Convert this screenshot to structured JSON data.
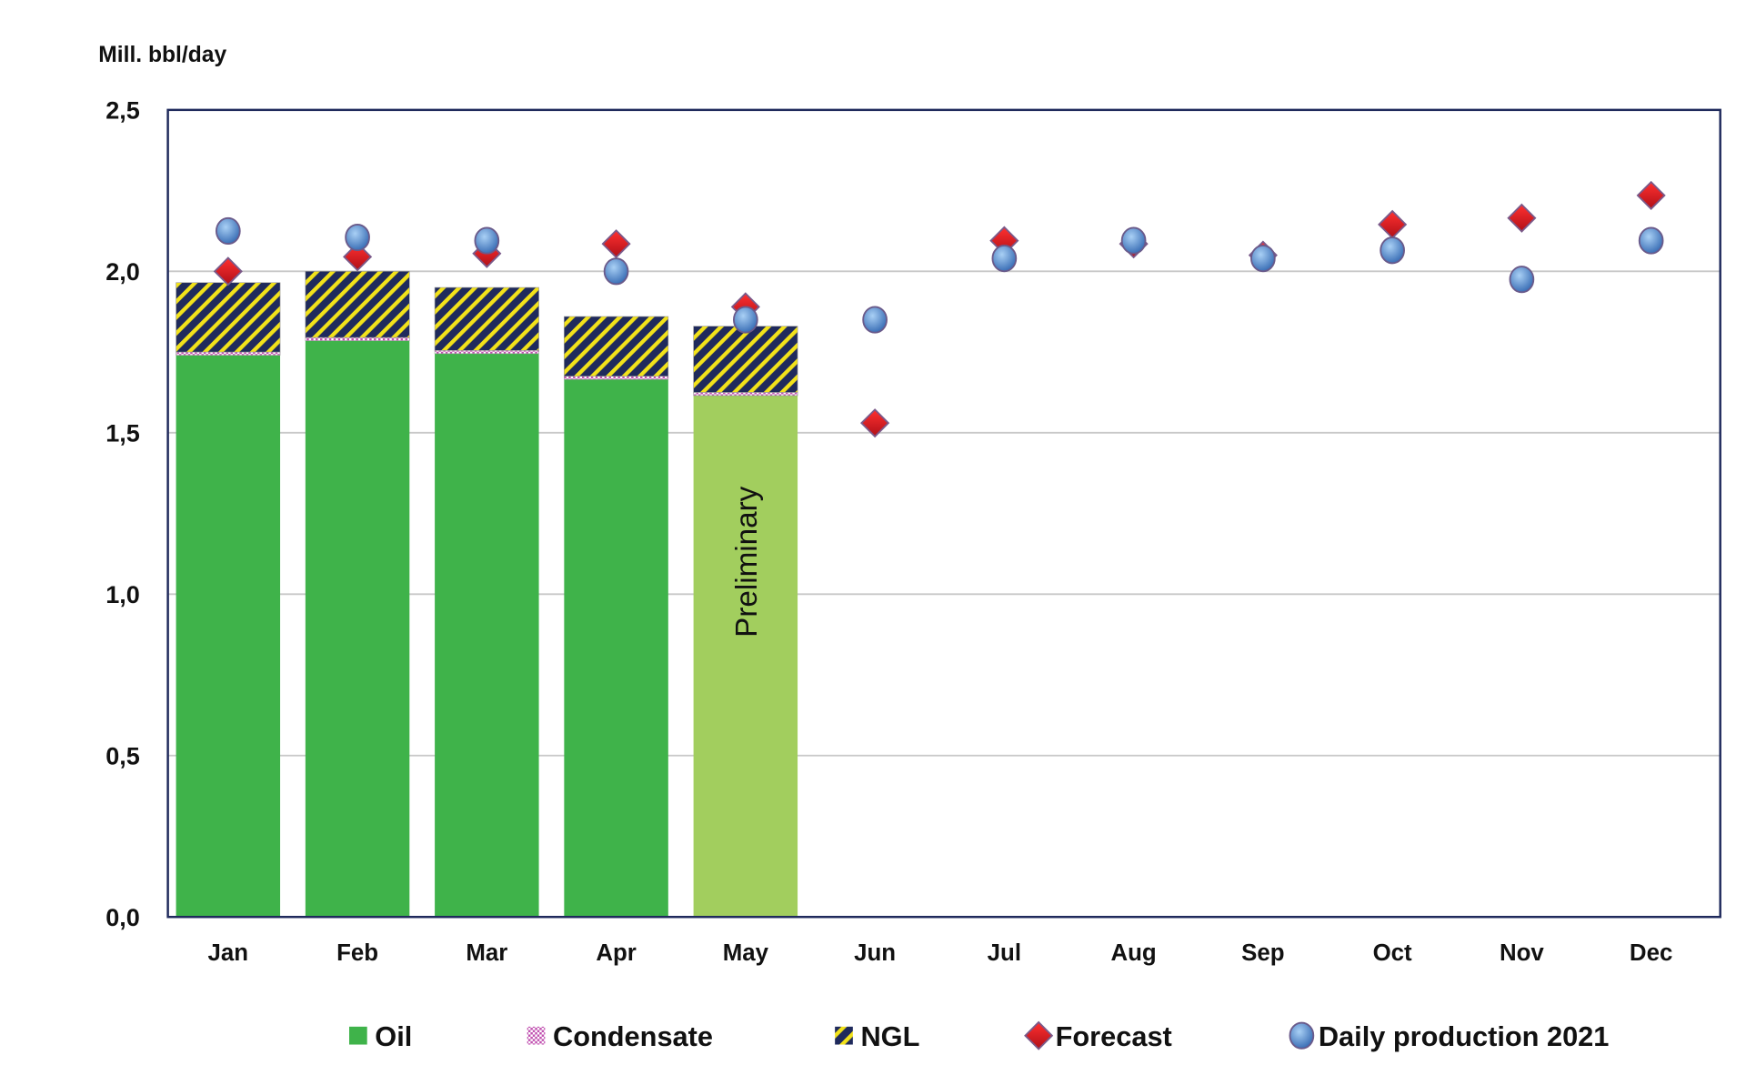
{
  "chart_data": {
    "type": "bar",
    "stacked": true,
    "ylabel": "Mill. bbl/day",
    "ylim": [
      0,
      2.5
    ],
    "yticks": [
      "0,0",
      "0,5",
      "1,0",
      "1,5",
      "2,0",
      "2,5"
    ],
    "grid": true,
    "legend_position": "bottom",
    "categories": [
      "Jan",
      "Feb",
      "Mar",
      "Apr",
      "May",
      "Jun",
      "Jul",
      "Aug",
      "Sep",
      "Oct",
      "Nov",
      "Dec"
    ],
    "series": [
      {
        "name": "Oil",
        "kind": "bar",
        "color": "#3FB34A",
        "values": [
          1.74,
          1.785,
          1.745,
          1.665,
          1.615,
          null,
          null,
          null,
          null,
          null,
          null,
          null
        ]
      },
      {
        "name": "Condensate",
        "kind": "bar",
        "color": "#C050B0",
        "values": [
          0.01,
          0.01,
          0.01,
          0.01,
          0.01,
          null,
          null,
          null,
          null,
          null,
          null,
          null
        ]
      },
      {
        "name": "NGL",
        "kind": "bar",
        "color": "#1F2A5C",
        "values": [
          0.215,
          0.205,
          0.195,
          0.185,
          0.205,
          null,
          null,
          null,
          null,
          null,
          null,
          null
        ]
      },
      {
        "name": "Forecast",
        "kind": "diamond",
        "color": "#E0202A",
        "values": [
          2.0,
          2.045,
          2.055,
          2.085,
          1.89,
          1.53,
          2.095,
          2.085,
          2.05,
          2.145,
          2.165,
          2.235
        ]
      },
      {
        "name": "Daily production 2021",
        "kind": "circle",
        "color": "#5B9BD5",
        "values": [
          2.125,
          2.105,
          2.095,
          2.0,
          1.85,
          1.85,
          2.04,
          2.095,
          2.04,
          2.065,
          1.975,
          2.095
        ]
      }
    ],
    "preliminary_color": "#A2CE5E",
    "annotations": [
      {
        "category": "May",
        "text": "Preliminary"
      }
    ]
  }
}
